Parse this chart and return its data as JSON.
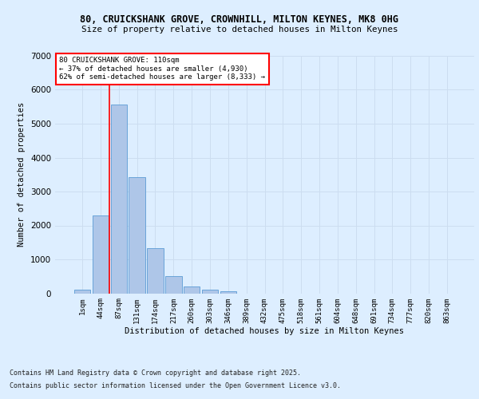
{
  "title_line1": "80, CRUICKSHANK GROVE, CROWNHILL, MILTON KEYNES, MK8 0HG",
  "title_line2": "Size of property relative to detached houses in Milton Keynes",
  "xlabel": "Distribution of detached houses by size in Milton Keynes",
  "ylabel": "Number of detached properties",
  "bin_labels": [
    "1sqm",
    "44sqm",
    "87sqm",
    "131sqm",
    "174sqm",
    "217sqm",
    "260sqm",
    "303sqm",
    "346sqm",
    "389sqm",
    "432sqm",
    "475sqm",
    "518sqm",
    "561sqm",
    "604sqm",
    "648sqm",
    "691sqm",
    "734sqm",
    "777sqm",
    "820sqm",
    "863sqm"
  ],
  "bar_values": [
    100,
    2300,
    5560,
    3420,
    1330,
    500,
    190,
    100,
    60,
    0,
    0,
    0,
    0,
    0,
    0,
    0,
    0,
    0,
    0,
    0,
    0
  ],
  "bar_color": "#aec6e8",
  "bar_edge_color": "#5b9bd5",
  "grid_color": "#ccddf0",
  "vline_color": "red",
  "vline_position": 1.5,
  "annotation_text": "80 CRUICKSHANK GROVE: 110sqm\n← 37% of detached houses are smaller (4,930)\n62% of semi-detached houses are larger (8,333) →",
  "annotation_box_color": "white",
  "annotation_box_edge_color": "red",
  "ylim": [
    0,
    7000
  ],
  "yticks": [
    0,
    1000,
    2000,
    3000,
    4000,
    5000,
    6000,
    7000
  ],
  "footer_line1": "Contains HM Land Registry data © Crown copyright and database right 2025.",
  "footer_line2": "Contains public sector information licensed under the Open Government Licence v3.0.",
  "bg_color": "#ddeeff",
  "plot_bg_color": "#ddeeff"
}
